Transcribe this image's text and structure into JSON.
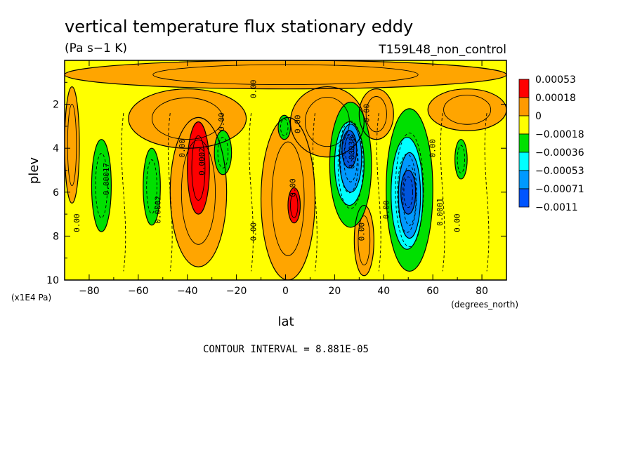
{
  "chart_data": {
    "type": "heatmap",
    "title": "vertical temperature flux stationary eddy",
    "units": "(Pa s−1 K)",
    "run_label": "T159L48_non_control",
    "xlabel": "lat",
    "x_units": "(degrees_north)",
    "ylabel": "plev",
    "y_units": "(x1E4 Pa)",
    "xlim": [
      -90,
      90
    ],
    "ylim": [
      10,
      0
    ],
    "y_inverted": true,
    "x_ticks": [
      "−80",
      "−60",
      "−40",
      "−20",
      "0",
      "20",
      "40",
      "60",
      "80"
    ],
    "x_tick_values": [
      -80,
      -60,
      -40,
      -20,
      0,
      20,
      40,
      60,
      80
    ],
    "y_ticks": [
      "2",
      "4",
      "6",
      "8",
      "10"
    ],
    "y_tick_values": [
      2,
      4,
      6,
      8,
      10
    ],
    "contour_interval_text": "CONTOUR INTERVAL = 8.881E-05",
    "colorbar": {
      "labels": [
        "0.00053",
        "0.00018",
        "0",
        "−0.00018",
        "−0.00036",
        "−0.00053",
        "−0.00071",
        "−0.0011"
      ],
      "colors": [
        "#ff0000",
        "#ff9a00",
        "#ffff00",
        "#00e000",
        "#00ffff",
        "#0099ff",
        "#0055ff"
      ]
    },
    "level_colors": {
      "strong_positive": "#ff0000",
      "positive": "#ffa500",
      "near_zero": "#ffff00",
      "negative": "#00e000",
      "more_negative": "#00ffff",
      "strong_negative": "#0099ff",
      "extreme_negative": "#0055dd"
    },
    "background_level": "near_zero",
    "contour_labels": [
      "0.00",
      "0.0001",
      "0.00017",
      "0.0002",
      "0.0003",
      "0.00036"
    ],
    "regions": [
      {
        "level": "positive",
        "lat": [
          -90,
          90
        ],
        "plev": [
          0,
          1.3
        ]
      },
      {
        "level": "positive",
        "lat": [
          -90,
          -84
        ],
        "plev": [
          1.2,
          6.5
        ]
      },
      {
        "level": "positive",
        "lat": [
          -64,
          -16
        ],
        "plev": [
          1.3,
          4.0
        ]
      },
      {
        "level": "positive",
        "lat": [
          -47,
          -24
        ],
        "plev": [
          2.6,
          9.4
        ]
      },
      {
        "level": "positive",
        "lat": [
          -10,
          12
        ],
        "plev": [
          2.6,
          10
        ]
      },
      {
        "level": "positive",
        "lat": [
          2,
          32
        ],
        "plev": [
          1.2,
          4.4
        ]
      },
      {
        "level": "positive",
        "lat": [
          30,
          44
        ],
        "plev": [
          1.3,
          3.6
        ]
      },
      {
        "level": "positive",
        "lat": [
          58,
          90
        ],
        "plev": [
          1.3,
          3.2
        ]
      },
      {
        "level": "positive",
        "lat": [
          28,
          36
        ],
        "plev": [
          6.6,
          9.8
        ]
      },
      {
        "level": "strong_positive",
        "lat": [
          -40,
          -31
        ],
        "plev": [
          2.8,
          7.0
        ]
      },
      {
        "level": "strong_positive",
        "lat": [
          1,
          6
        ],
        "plev": [
          5.8,
          7.4
        ]
      },
      {
        "level": "negative",
        "lat": [
          -79,
          -71
        ],
        "plev": [
          3.6,
          7.8
        ]
      },
      {
        "level": "negative",
        "lat": [
          -58,
          -51
        ],
        "plev": [
          4.0,
          7.5
        ]
      },
      {
        "level": "negative",
        "lat": [
          -29,
          -22
        ],
        "plev": [
          3.2,
          5.2
        ]
      },
      {
        "level": "negative",
        "lat": [
          -3,
          2
        ],
        "plev": [
          2.5,
          3.6
        ]
      },
      {
        "level": "negative",
        "lat": [
          18,
          35
        ],
        "plev": [
          1.9,
          7.6
        ]
      },
      {
        "level": "negative",
        "lat": [
          41,
          60
        ],
        "plev": [
          2.2,
          9.6
        ]
      },
      {
        "level": "negative",
        "lat": [
          69,
          74
        ],
        "plev": [
          3.6,
          5.4
        ]
      },
      {
        "level": "more_negative",
        "lat": [
          20,
          32
        ],
        "plev": [
          2.8,
          6.6
        ]
      },
      {
        "level": "more_negative",
        "lat": [
          43,
          56
        ],
        "plev": [
          3.5,
          8.6
        ]
      },
      {
        "level": "strong_negative",
        "lat": [
          22,
          31
        ],
        "plev": [
          2.9,
          6.0
        ]
      },
      {
        "level": "strong_negative",
        "lat": [
          46,
          55
        ],
        "plev": [
          4.2,
          8.1
        ]
      },
      {
        "level": "extreme_negative",
        "lat": [
          23,
          29
        ],
        "plev": [
          3.2,
          4.9
        ]
      },
      {
        "level": "extreme_negative",
        "lat": [
          47,
          53
        ],
        "plev": [
          5.0,
          7.0
        ]
      }
    ]
  }
}
